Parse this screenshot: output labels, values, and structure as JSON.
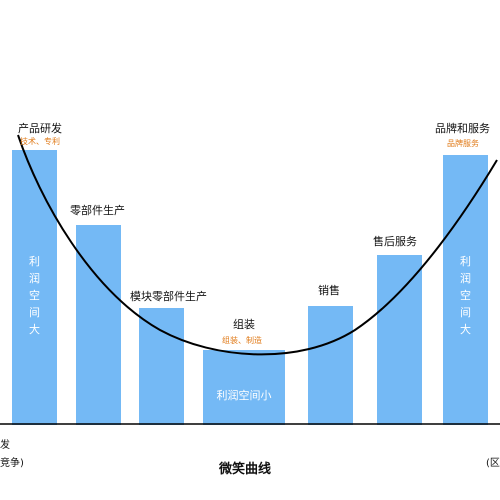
{
  "diagram": {
    "title": "微笑曲线",
    "left_axis_fragments": [
      "发",
      "竞争)"
    ],
    "right_axis_fragment": "(区",
    "stages": [
      {
        "label": "产品研发",
        "sub": "技术、专利",
        "inner": "利润空间大",
        "vertical": true
      },
      {
        "label": "零部件生产",
        "sub": "",
        "inner": "",
        "vertical": false
      },
      {
        "label": "模块零部件生产",
        "sub": "",
        "inner": "",
        "vertical": false
      },
      {
        "label": "组装",
        "sub": "组装、制造",
        "inner": "利润空间小",
        "vertical": false
      },
      {
        "label": "销售",
        "sub": "",
        "inner": "",
        "vertical": false
      },
      {
        "label": "售后服务",
        "sub": "",
        "inner": "",
        "vertical": false
      },
      {
        "label": "品牌和服务",
        "sub": "品牌服务",
        "inner": "利润空间大",
        "vertical": true
      }
    ],
    "colors": {
      "bar": "#74b9f5",
      "curve": "#000000",
      "sub_label": "#e07b1a",
      "baseline": "#000000"
    }
  }
}
